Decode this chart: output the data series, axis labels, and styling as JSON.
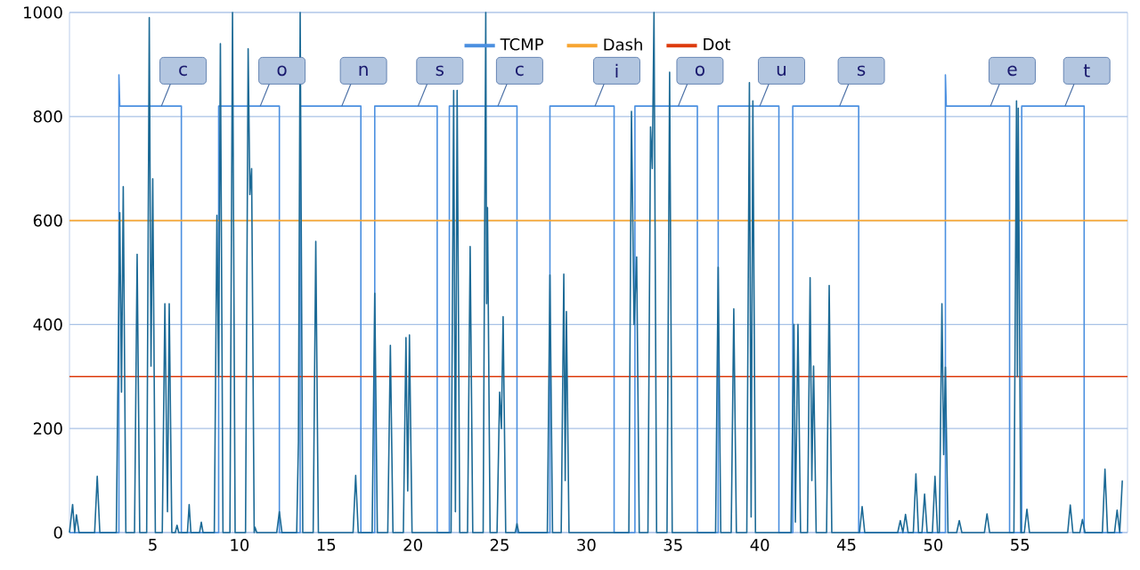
{
  "chart_data": {
    "type": "line",
    "xlim": [
      0.2,
      61.2
    ],
    "ylim": [
      0,
      1000
    ],
    "xticks": [
      5,
      10,
      15,
      20,
      25,
      30,
      35,
      40,
      45,
      50,
      55
    ],
    "yticks": [
      0,
      200,
      400,
      600,
      800,
      1000
    ],
    "grid": "y",
    "legend": "top",
    "marker": "none",
    "line_style": "solid",
    "series": [
      {
        "name": "TCMP",
        "color": "#4a8fe0",
        "x": [
          0.2,
          3.05,
          3.05,
          3.1,
          6.65,
          6.65,
          8.8,
          8.8,
          12.3,
          12.3,
          13.5,
          13.5,
          17.0,
          17.0,
          17.8,
          17.8,
          21.4,
          21.4,
          22.1,
          22.1,
          26.0,
          26.0,
          27.9,
          27.9,
          31.6,
          31.6,
          32.8,
          32.8,
          36.4,
          36.4,
          37.6,
          37.6,
          41.1,
          41.1,
          41.9,
          41.9,
          45.7,
          45.7,
          50.7,
          50.7,
          50.75,
          54.4,
          54.4,
          55.1,
          55.1,
          58.7,
          58.7,
          60.9
        ],
        "values": [
          0,
          0,
          880,
          820,
          820,
          0,
          0,
          820,
          820,
          0,
          0,
          820,
          820,
          0,
          0,
          820,
          820,
          0,
          0,
          820,
          820,
          0,
          0,
          820,
          820,
          0,
          0,
          820,
          820,
          0,
          0,
          820,
          820,
          0,
          0,
          820,
          820,
          0,
          0,
          880,
          820,
          820,
          0,
          0,
          820,
          820,
          0,
          0
        ]
      },
      {
        "name": "Dash",
        "color": "#f7a531",
        "x": [
          0.2,
          61.2
        ],
        "values": [
          600,
          600
        ]
      },
      {
        "name": "Dot",
        "color": "#dd3a0c",
        "x": [
          0.2,
          61.2
        ],
        "values": [
          300,
          300
        ]
      },
      {
        "color": "#1c6a96",
        "x": [
          0.2,
          0.38,
          0.5,
          0.6,
          0.75,
          1.65,
          1.8,
          1.95,
          2.9,
          3.1,
          3.2,
          3.3,
          3.45,
          3.95,
          4.1,
          4.25,
          4.65,
          4.8,
          4.9,
          5.0,
          5.15,
          5.55,
          5.7,
          5.85,
          5.95,
          6.1,
          6.3,
          6.4,
          6.5,
          7.0,
          7.1,
          7.2,
          7.7,
          7.8,
          7.9,
          8.55,
          8.7,
          8.8,
          8.9,
          9.05,
          9.45,
          9.6,
          9.75,
          10.35,
          10.5,
          10.6,
          10.7,
          10.85,
          10.9,
          11.0,
          12.15,
          12.3,
          12.45,
          13.3,
          13.4,
          13.5,
          13.65,
          14.25,
          14.4,
          14.55,
          16.55,
          16.7,
          16.85,
          17.65,
          17.8,
          17.95,
          18.55,
          18.7,
          18.85,
          19.45,
          19.6,
          19.7,
          19.8,
          19.95,
          22.2,
          22.35,
          22.45,
          22.55,
          22.7,
          23.15,
          23.3,
          23.45,
          24.05,
          24.2,
          24.25,
          24.3,
          24.45,
          24.85,
          25.0,
          25.1,
          25.2,
          25.35,
          25.9,
          26.0,
          26.1,
          27.75,
          27.9,
          28.05,
          28.55,
          28.7,
          28.78,
          28.85,
          29.0,
          32.45,
          32.6,
          32.75,
          32.9,
          33.05,
          33.55,
          33.7,
          33.8,
          33.9,
          34.05,
          34.65,
          34.8,
          34.95,
          37.45,
          37.6,
          37.75,
          38.35,
          38.5,
          38.65,
          39.25,
          39.4,
          39.5,
          39.6,
          39.75,
          41.8,
          41.97,
          42.05,
          42.2,
          42.35,
          42.75,
          42.9,
          43.0,
          43.1,
          43.25,
          43.85,
          44.0,
          44.15,
          45.75,
          45.9,
          46.05,
          47.95,
          48.1,
          48.25,
          48.4,
          48.55,
          48.85,
          49.0,
          49.15,
          49.35,
          49.5,
          49.65,
          49.95,
          50.1,
          50.25,
          50.35,
          50.5,
          50.6,
          50.7,
          50.85,
          51.35,
          51.5,
          51.65,
          52.95,
          53.1,
          53.25,
          54.65,
          54.8,
          54.85,
          54.9,
          55.05,
          55.25,
          55.4,
          55.55,
          57.75,
          57.9,
          58.05,
          58.45,
          58.6,
          58.75,
          59.75,
          59.9,
          60.05,
          60.45,
          60.6,
          60.75,
          60.9
        ],
        "values": [
          0,
          54,
          0,
          34,
          0,
          0,
          108,
          0,
          0,
          615,
          270,
          665,
          0,
          0,
          535,
          0,
          0,
          990,
          320,
          680,
          0,
          0,
          440,
          40,
          440,
          0,
          0,
          14,
          0,
          0,
          54,
          0,
          0,
          20,
          0,
          0,
          610,
          300,
          940,
          0,
          0,
          1000,
          0,
          0,
          930,
          650,
          700,
          0,
          10,
          0,
          0,
          40,
          0,
          0,
          175,
          1000,
          0,
          0,
          560,
          0,
          0,
          110,
          0,
          0,
          460,
          0,
          0,
          360,
          0,
          0,
          375,
          80,
          380,
          0,
          0,
          850,
          40,
          850,
          0,
          0,
          550,
          0,
          0,
          1000,
          440,
          625,
          0,
          0,
          270,
          200,
          415,
          0,
          0,
          17,
          0,
          0,
          495,
          0,
          0,
          497,
          100,
          425,
          0,
          0,
          810,
          400,
          530,
          0,
          0,
          780,
          700,
          1000,
          0,
          0,
          885,
          0,
          0,
          510,
          0,
          0,
          430,
          0,
          0,
          865,
          30,
          830,
          0,
          0,
          400,
          20,
          400,
          0,
          0,
          490,
          100,
          320,
          0,
          0,
          475,
          0,
          0,
          50,
          0,
          0,
          23,
          0,
          35,
          0,
          0,
          113,
          0,
          0,
          74,
          0,
          0,
          108,
          0,
          0,
          440,
          150,
          318,
          0,
          0,
          23,
          0,
          0,
          36,
          0,
          0,
          830,
          300,
          816,
          0,
          0,
          45,
          0,
          0,
          53,
          0,
          0,
          25,
          0,
          0,
          122,
          0,
          0,
          43,
          0,
          100
        ]
      }
    ],
    "annotations": [
      {
        "text": "c",
        "x": 5.5,
        "y": 820
      },
      {
        "text": "o",
        "x": 11.2,
        "y": 820
      },
      {
        "text": "n",
        "x": 15.9,
        "y": 820
      },
      {
        "text": "s",
        "x": 20.3,
        "y": 820
      },
      {
        "text": "c",
        "x": 24.9,
        "y": 820
      },
      {
        "text": "i",
        "x": 30.5,
        "y": 820
      },
      {
        "text": "o",
        "x": 35.3,
        "y": 820
      },
      {
        "text": "u",
        "x": 40.0,
        "y": 820
      },
      {
        "text": "s",
        "x": 44.6,
        "y": 820
      },
      {
        "text": "e",
        "x": 53.3,
        "y": 820
      },
      {
        "text": "t",
        "x": 57.6,
        "y": 820
      }
    ]
  }
}
